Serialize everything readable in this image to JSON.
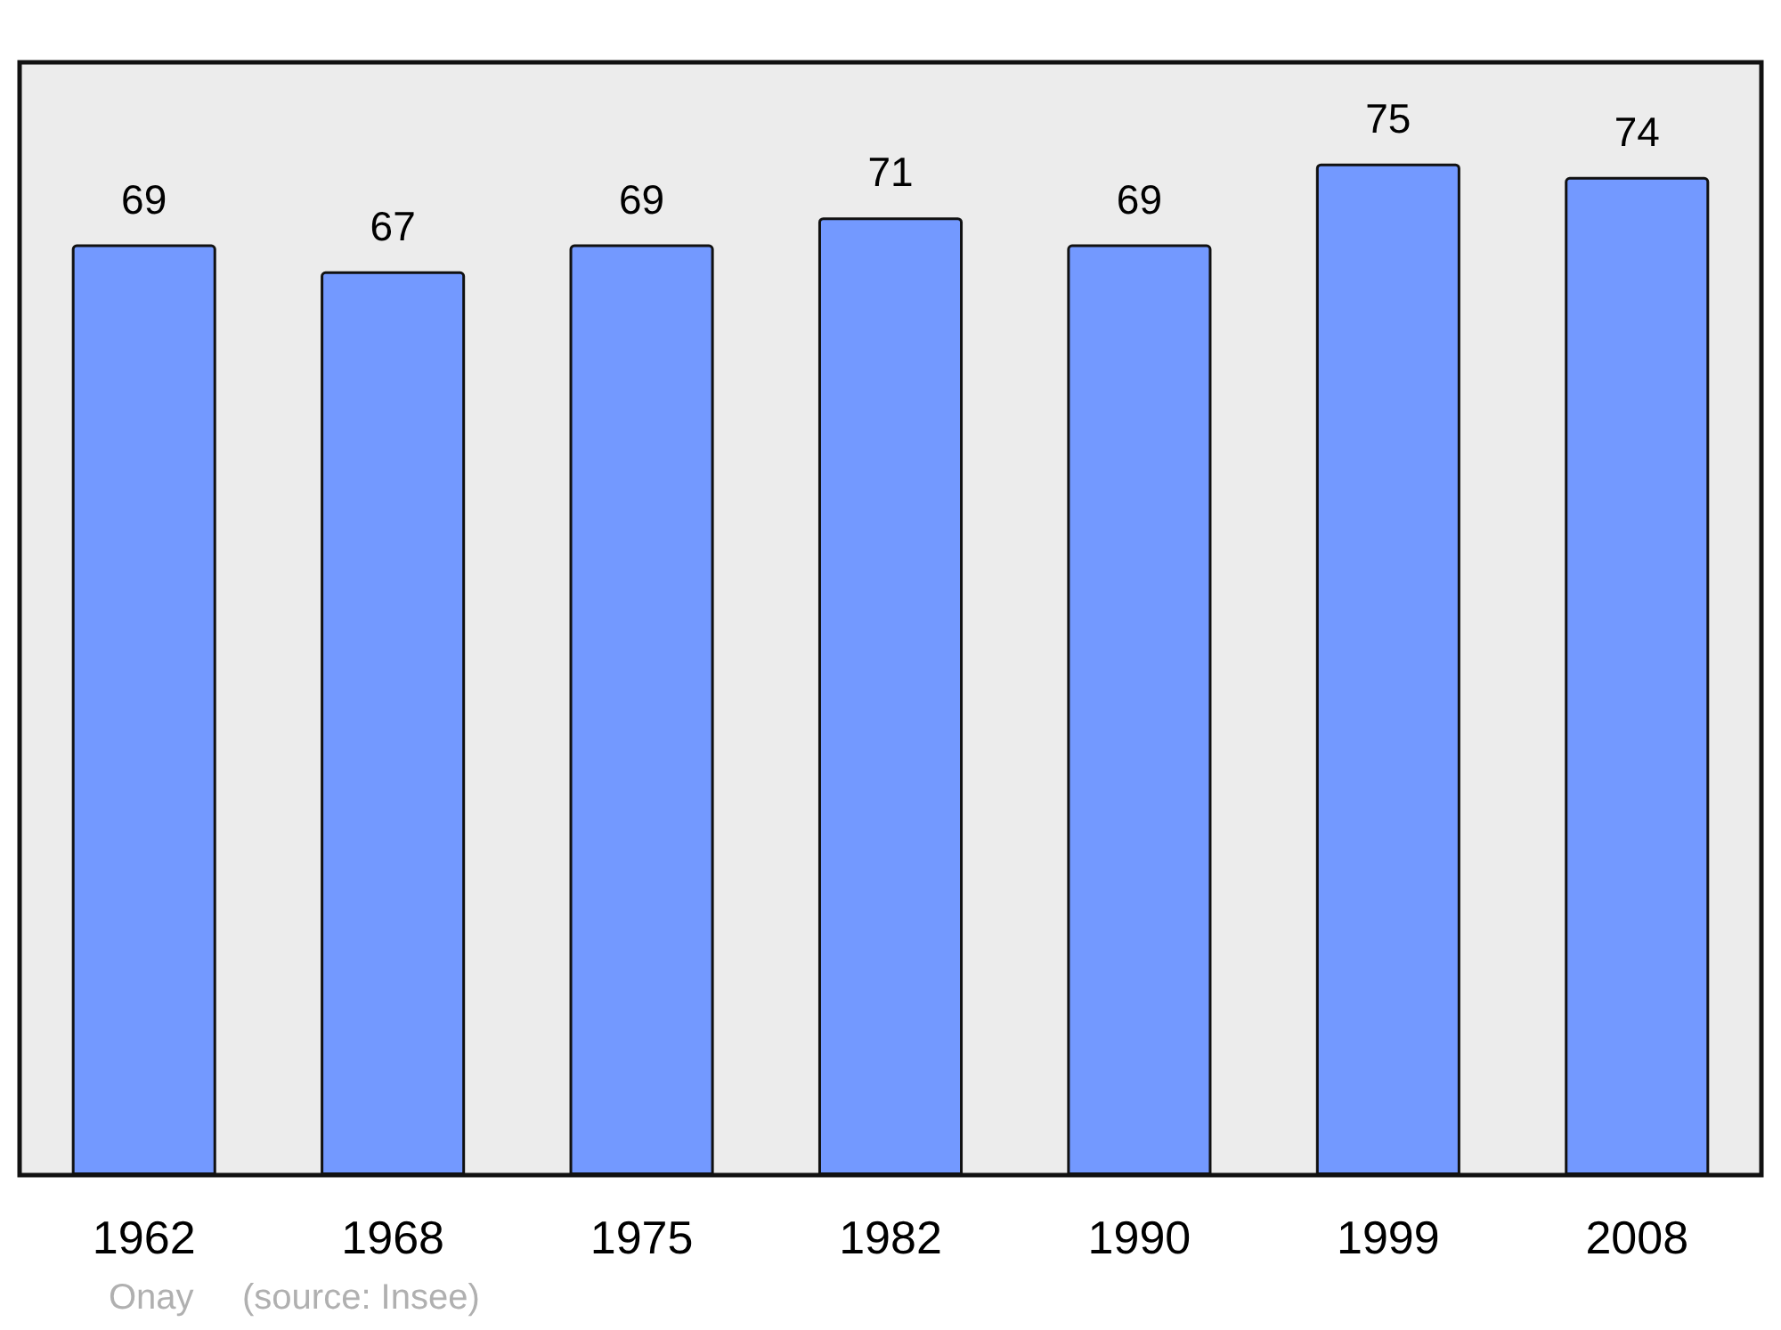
{
  "chart_data": {
    "type": "bar",
    "categories": [
      "1962",
      "1968",
      "1975",
      "1982",
      "1990",
      "1999",
      "2008"
    ],
    "values": [
      69,
      67,
      69,
      71,
      69,
      75,
      74
    ],
    "color": "#7399ff",
    "data_labels": true,
    "annotations": [
      "Onay",
      "(source: Insee)"
    ]
  }
}
